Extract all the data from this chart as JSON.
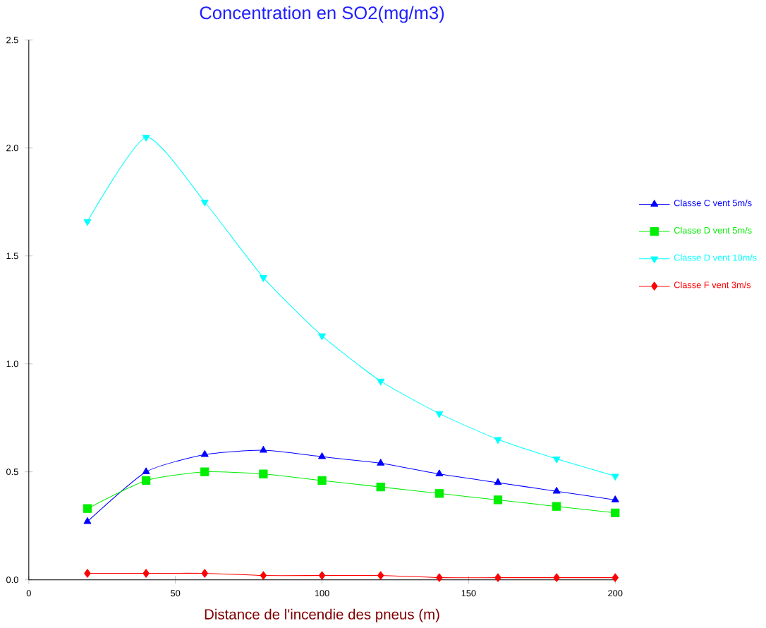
{
  "chart_data": {
    "type": "line",
    "title": "Concentration en SO2(mg/m3)",
    "xlabel": "Distance de l'incendie des pneus (m)",
    "x": [
      20,
      40,
      60,
      80,
      100,
      120,
      140,
      160,
      180,
      200
    ],
    "xlim": [
      0,
      200
    ],
    "xticks": [
      0,
      50,
      100,
      150,
      200
    ],
    "ylim": [
      0,
      2.5
    ],
    "yticks": [
      {
        "value": 0,
        "label": "0.0"
      },
      {
        "value": 0.5,
        "label": "0.5"
      },
      {
        "value": 1,
        "label": "1.0"
      },
      {
        "value": 1.5,
        "label": "1.5"
      },
      {
        "value": 2,
        "label": "2.0"
      },
      {
        "value": 2.5,
        "label": "2.5"
      }
    ],
    "grid": false,
    "legend": "right",
    "series": [
      {
        "name": "Classe C vent 5m/s",
        "color": "#0000ff",
        "marker": "triangle",
        "values": [
          0.27,
          0.5,
          0.58,
          0.6,
          0.57,
          0.54,
          0.49,
          0.45,
          0.41,
          0.37
        ]
      },
      {
        "name": "Classe D vent 5m/s",
        "color": "#00ee00",
        "marker": "square",
        "values": [
          0.33,
          0.46,
          0.5,
          0.49,
          0.46,
          0.43,
          0.4,
          0.37,
          0.34,
          0.31
        ]
      },
      {
        "name": "Classe D vent 10m/s",
        "color": "#00ffff",
        "marker": "triangle down",
        "values": [
          1.66,
          2.05,
          1.75,
          1.4,
          1.13,
          0.92,
          0.77,
          0.65,
          0.56,
          0.48
        ]
      },
      {
        "name": "Classe F vent 3m/s",
        "color": "#ff0000",
        "marker": "diamond",
        "values": [
          0.03,
          0.03,
          0.03,
          0.02,
          0.02,
          0.02,
          0.01,
          0.01,
          0.01,
          0.01
        ]
      }
    ]
  }
}
